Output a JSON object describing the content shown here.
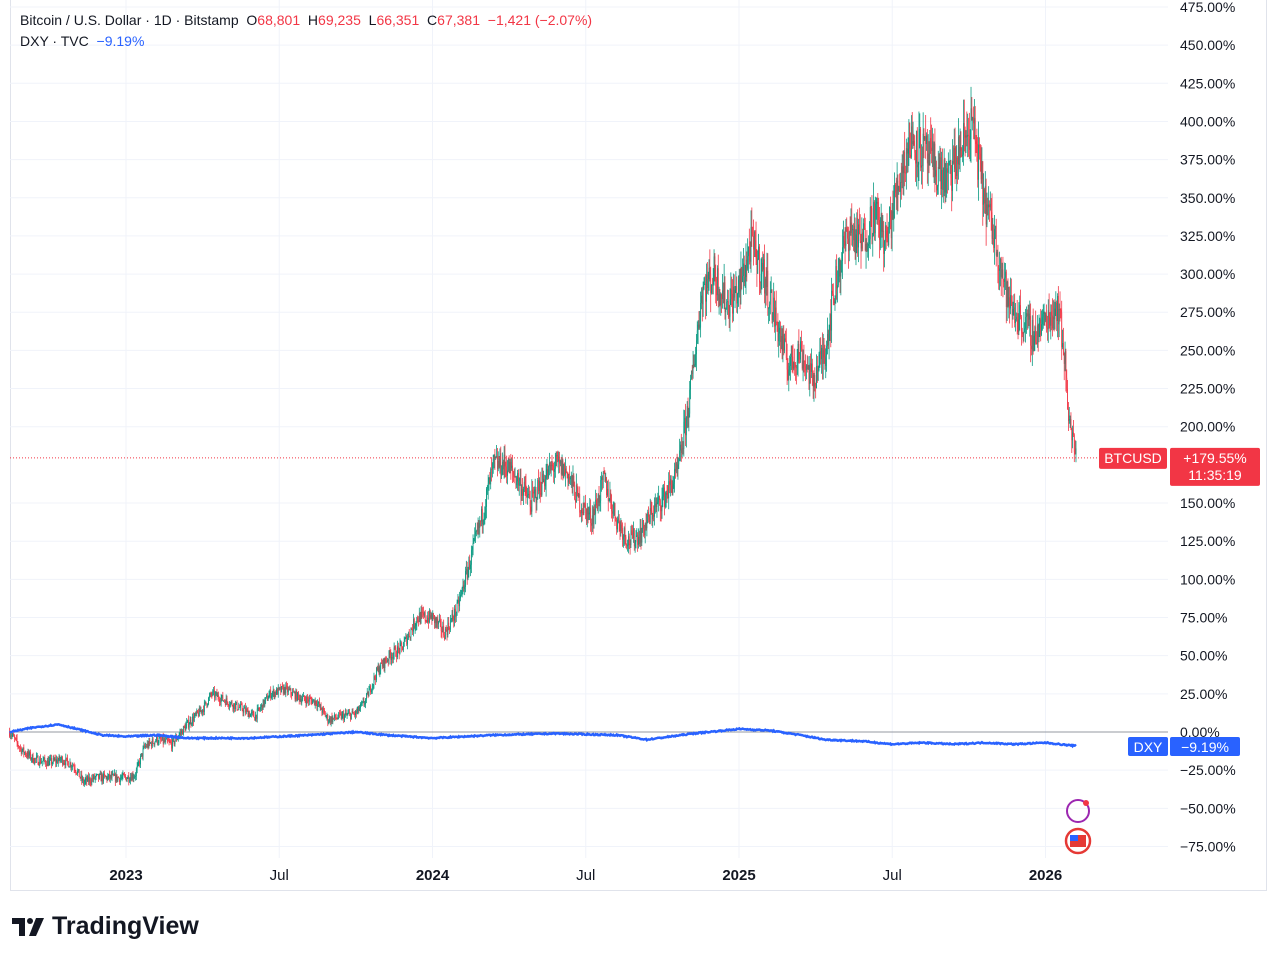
{
  "legend": {
    "symbol": "Bitcoin / U.S. Dollar · 1D · Bitstamp",
    "o_label": "O",
    "o": "68,801",
    "h_label": "H",
    "h": "69,235",
    "l_label": "L",
    "l": "66,351",
    "c_label": "C",
    "c": "67,381",
    "change": "−1,421 (−2.07%)",
    "dxy": "DXY · TVC",
    "dxy_change": "−9.19%"
  },
  "badges": {
    "btc_name": "BTCUSD",
    "btc_value": "+179.55%",
    "btc_countdown": "11:35:19",
    "dxy_name": "DXY",
    "dxy_value": "−9.19%"
  },
  "brand": "TradingView",
  "colors": {
    "up": "#089981",
    "down": "#f23645",
    "dxy": "#2962ff"
  },
  "chart_data": {
    "type": "candlestick-compare",
    "yaxis": {
      "unit": "%",
      "ticks": [
        "475.00%",
        "450.00%",
        "425.00%",
        "400.00%",
        "375.00%",
        "350.00%",
        "325.00%",
        "300.00%",
        "275.00%",
        "250.00%",
        "225.00%",
        "200.00%",
        "150.00%",
        "125.00%",
        "100.00%",
        "75.00%",
        "50.00%",
        "25.00%",
        "0.00%",
        "−25.00%",
        "−50.00%",
        "−75.00%"
      ],
      "tick_values": [
        475,
        450,
        425,
        400,
        375,
        350,
        325,
        300,
        275,
        250,
        225,
        200,
        150,
        125,
        100,
        75,
        50,
        25,
        0,
        -25,
        -50,
        -75
      ],
      "range": [
        -87,
        475
      ]
    },
    "xaxis": {
      "ticks": [
        {
          "label": "2023",
          "t": 2023,
          "bold": true
        },
        {
          "label": "Jul",
          "t": 2023.5
        },
        {
          "label": "2024",
          "t": 2024,
          "bold": true
        },
        {
          "label": "Jul",
          "t": 2024.5
        },
        {
          "label": "2025",
          "t": 2025,
          "bold": true
        },
        {
          "label": "Jul",
          "t": 2025.5
        },
        {
          "label": "2026",
          "t": 2026,
          "bold": true
        }
      ],
      "range": [
        2022.62,
        2026.4
      ]
    },
    "series": [
      {
        "name": "BTCUSD",
        "type": "candles",
        "last": 179.55,
        "points": [
          [
            2022.62,
            0
          ],
          [
            2022.66,
            -12
          ],
          [
            2022.7,
            -18
          ],
          [
            2022.75,
            -20
          ],
          [
            2022.79,
            -18
          ],
          [
            2022.83,
            -22
          ],
          [
            2022.86,
            -33
          ],
          [
            2022.9,
            -30
          ],
          [
            2022.95,
            -30
          ],
          [
            2023.0,
            -30
          ],
          [
            2023.03,
            -28
          ],
          [
            2023.06,
            -10
          ],
          [
            2023.1,
            -5
          ],
          [
            2023.15,
            -8
          ],
          [
            2023.2,
            5
          ],
          [
            2023.25,
            15
          ],
          [
            2023.28,
            25
          ],
          [
            2023.33,
            20
          ],
          [
            2023.38,
            15
          ],
          [
            2023.42,
            10
          ],
          [
            2023.47,
            25
          ],
          [
            2023.52,
            28
          ],
          [
            2023.57,
            22
          ],
          [
            2023.62,
            20
          ],
          [
            2023.66,
            8
          ],
          [
            2023.7,
            10
          ],
          [
            2023.75,
            12
          ],
          [
            2023.78,
            20
          ],
          [
            2023.82,
            40
          ],
          [
            2023.86,
            50
          ],
          [
            2023.9,
            55
          ],
          [
            2023.95,
            75
          ],
          [
            2024.0,
            75
          ],
          [
            2024.04,
            65
          ],
          [
            2024.08,
            80
          ],
          [
            2024.12,
            110
          ],
          [
            2024.16,
            140
          ],
          [
            2024.2,
            175
          ],
          [
            2024.24,
            175
          ],
          [
            2024.28,
            165
          ],
          [
            2024.32,
            150
          ],
          [
            2024.36,
            165
          ],
          [
            2024.4,
            175
          ],
          [
            2024.44,
            170
          ],
          [
            2024.48,
            150
          ],
          [
            2024.52,
            140
          ],
          [
            2024.56,
            165
          ],
          [
            2024.6,
            140
          ],
          [
            2024.64,
            125
          ],
          [
            2024.68,
            130
          ],
          [
            2024.72,
            145
          ],
          [
            2024.76,
            155
          ],
          [
            2024.8,
            170
          ],
          [
            2024.84,
            220
          ],
          [
            2024.88,
            290
          ],
          [
            2024.92,
            300
          ],
          [
            2024.96,
            280
          ],
          [
            2025.0,
            290
          ],
          [
            2025.04,
            320
          ],
          [
            2025.08,
            300
          ],
          [
            2025.12,
            270
          ],
          [
            2025.16,
            240
          ],
          [
            2025.2,
            250
          ],
          [
            2025.24,
            230
          ],
          [
            2025.28,
            250
          ],
          [
            2025.32,
            300
          ],
          [
            2025.36,
            330
          ],
          [
            2025.4,
            320
          ],
          [
            2025.44,
            340
          ],
          [
            2025.48,
            320
          ],
          [
            2025.52,
            360
          ],
          [
            2025.56,
            390
          ],
          [
            2025.6,
            380
          ],
          [
            2025.64,
            370
          ],
          [
            2025.68,
            360
          ],
          [
            2025.72,
            380
          ],
          [
            2025.76,
            400
          ],
          [
            2025.8,
            350
          ],
          [
            2025.84,
            320
          ],
          [
            2025.88,
            280
          ],
          [
            2025.92,
            270
          ],
          [
            2025.96,
            260
          ],
          [
            2026.0,
            270
          ],
          [
            2026.04,
            280
          ],
          [
            2026.06,
            250
          ],
          [
            2026.08,
            200
          ],
          [
            2026.1,
            179.55
          ]
        ]
      },
      {
        "name": "DXY",
        "type": "line",
        "last": -9.19,
        "points": [
          [
            2022.62,
            0
          ],
          [
            2022.7,
            3
          ],
          [
            2022.78,
            5
          ],
          [
            2022.84,
            2
          ],
          [
            2022.92,
            -2
          ],
          [
            2023.0,
            -3
          ],
          [
            2023.1,
            -2
          ],
          [
            2023.2,
            -4
          ],
          [
            2023.4,
            -4
          ],
          [
            2023.6,
            -2
          ],
          [
            2023.75,
            0
          ],
          [
            2023.85,
            -2
          ],
          [
            2024.0,
            -4
          ],
          [
            2024.2,
            -2
          ],
          [
            2024.4,
            -1
          ],
          [
            2024.6,
            -2
          ],
          [
            2024.7,
            -5
          ],
          [
            2024.85,
            -1
          ],
          [
            2025.0,
            2
          ],
          [
            2025.1,
            1
          ],
          [
            2025.2,
            -2
          ],
          [
            2025.28,
            -5
          ],
          [
            2025.4,
            -6
          ],
          [
            2025.5,
            -8
          ],
          [
            2025.6,
            -7
          ],
          [
            2025.7,
            -8
          ],
          [
            2025.8,
            -7
          ],
          [
            2025.9,
            -8
          ],
          [
            2026.0,
            -7
          ],
          [
            2026.1,
            -9.19
          ]
        ]
      }
    ]
  }
}
